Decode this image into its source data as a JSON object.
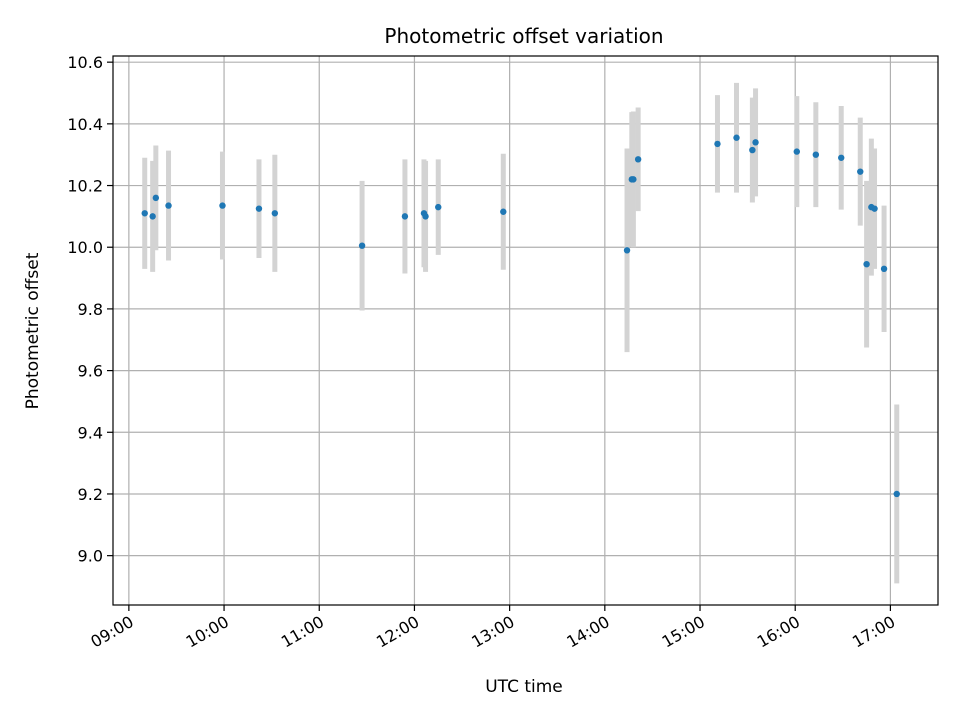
{
  "chart_data": {
    "type": "scatter",
    "title": "Photometric offset variation",
    "xlabel": "UTC time",
    "ylabel": "Photometric offset",
    "xlim": [
      "08:50",
      "17:30"
    ],
    "ylim": [
      8.84,
      10.62
    ],
    "x_ticks": [
      "09:00",
      "10:00",
      "11:00",
      "12:00",
      "13:00",
      "14:00",
      "15:00",
      "16:00",
      "17:00"
    ],
    "y_ticks": [
      "9.0",
      "9.2",
      "9.4",
      "9.6",
      "9.8",
      "10.0",
      "10.2",
      "10.4",
      "10.6"
    ],
    "grid": true,
    "point_color": "#1f77b4",
    "errorbar_color": "#d3d3d3",
    "points": [
      {
        "x": "09:10",
        "y": 10.11,
        "err": 0.18
      },
      {
        "x": "09:15",
        "y": 10.1,
        "err": 0.18
      },
      {
        "x": "09:17",
        "y": 10.16,
        "err": 0.17
      },
      {
        "x": "09:25",
        "y": 10.135,
        "err": 0.178
      },
      {
        "x": "09:59",
        "y": 10.135,
        "err": 0.175
      },
      {
        "x": "10:22",
        "y": 10.125,
        "err": 0.16
      },
      {
        "x": "10:32",
        "y": 10.11,
        "err": 0.19
      },
      {
        "x": "11:27",
        "y": 10.005,
        "err": 0.21
      },
      {
        "x": "11:54",
        "y": 10.1,
        "err": 0.185
      },
      {
        "x": "12:06",
        "y": 10.11,
        "err": 0.175
      },
      {
        "x": "12:07",
        "y": 10.1,
        "err": 0.18
      },
      {
        "x": "12:15",
        "y": 10.13,
        "err": 0.155
      },
      {
        "x": "12:56",
        "y": 10.115,
        "err": 0.188
      },
      {
        "x": "14:14",
        "y": 9.99,
        "err": 0.33
      },
      {
        "x": "14:17",
        "y": 10.22,
        "err": 0.218
      },
      {
        "x": "14:18",
        "y": 10.22,
        "err": 0.22
      },
      {
        "x": "14:21",
        "y": 10.285,
        "err": 0.168
      },
      {
        "x": "15:11",
        "y": 10.335,
        "err": 0.158
      },
      {
        "x": "15:23",
        "y": 10.355,
        "err": 0.178
      },
      {
        "x": "15:33",
        "y": 10.315,
        "err": 0.17
      },
      {
        "x": "15:35",
        "y": 10.34,
        "err": 0.175
      },
      {
        "x": "16:01",
        "y": 10.31,
        "err": 0.18
      },
      {
        "x": "16:13",
        "y": 10.3,
        "err": 0.17
      },
      {
        "x": "16:29",
        "y": 10.29,
        "err": 0.168
      },
      {
        "x": "16:41",
        "y": 10.245,
        "err": 0.175
      },
      {
        "x": "16:45",
        "y": 9.945,
        "err": 0.27
      },
      {
        "x": "16:48",
        "y": 10.13,
        "err": 0.222
      },
      {
        "x": "16:50",
        "y": 10.125,
        "err": 0.195
      },
      {
        "x": "16:56",
        "y": 9.93,
        "err": 0.205
      },
      {
        "x": "17:04",
        "y": 9.2,
        "err": 0.29
      }
    ]
  }
}
